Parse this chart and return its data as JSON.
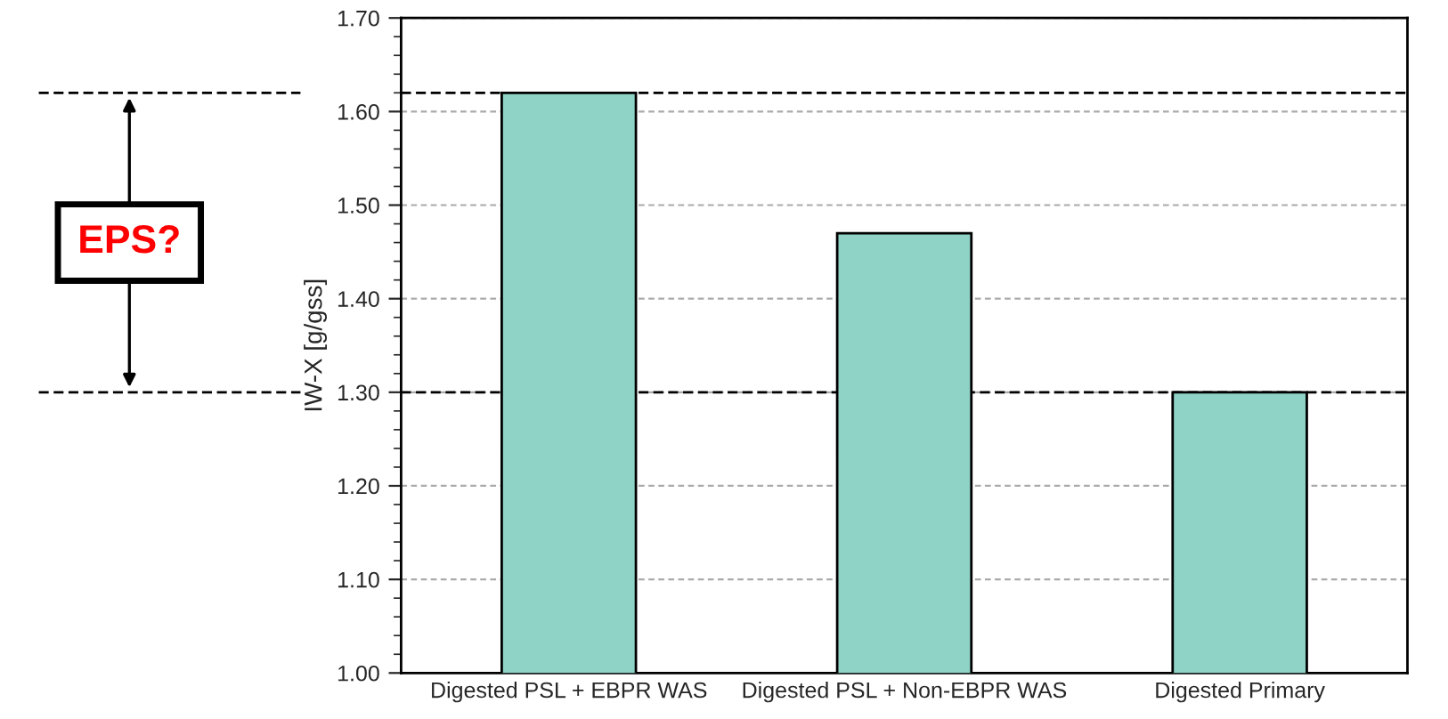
{
  "chart_data": {
    "type": "bar",
    "ylabel": "IW-X [g/gss]",
    "categories": [
      "Digested PSL + EBPR WAS",
      "Digested PSL + Non-EBPR WAS",
      "Digested Primary"
    ],
    "values": [
      1.62,
      1.47,
      1.3
    ],
    "color": "#8fd3c7",
    "ylim": [
      1.0,
      1.7
    ],
    "yticks": [
      {
        "value": 1.0,
        "label": "1.00"
      },
      {
        "value": 1.1,
        "label": "1.10"
      },
      {
        "value": 1.2,
        "label": "1.20"
      },
      {
        "value": 1.3,
        "label": "1.30"
      },
      {
        "value": 1.4,
        "label": "1.40"
      },
      {
        "value": 1.5,
        "label": "1.50"
      },
      {
        "value": 1.6,
        "label": "1.60"
      },
      {
        "value": 1.7,
        "label": "1.70"
      }
    ],
    "grid": "y",
    "ref_lines": [
      {
        "axis": "y",
        "value": 1.62,
        "color": "#000000",
        "line_style": "dashed"
      },
      {
        "axis": "y",
        "value": 1.3,
        "color": "#000000",
        "line_style": "dashed"
      }
    ],
    "annotations": [
      "EPS?"
    ]
  }
}
